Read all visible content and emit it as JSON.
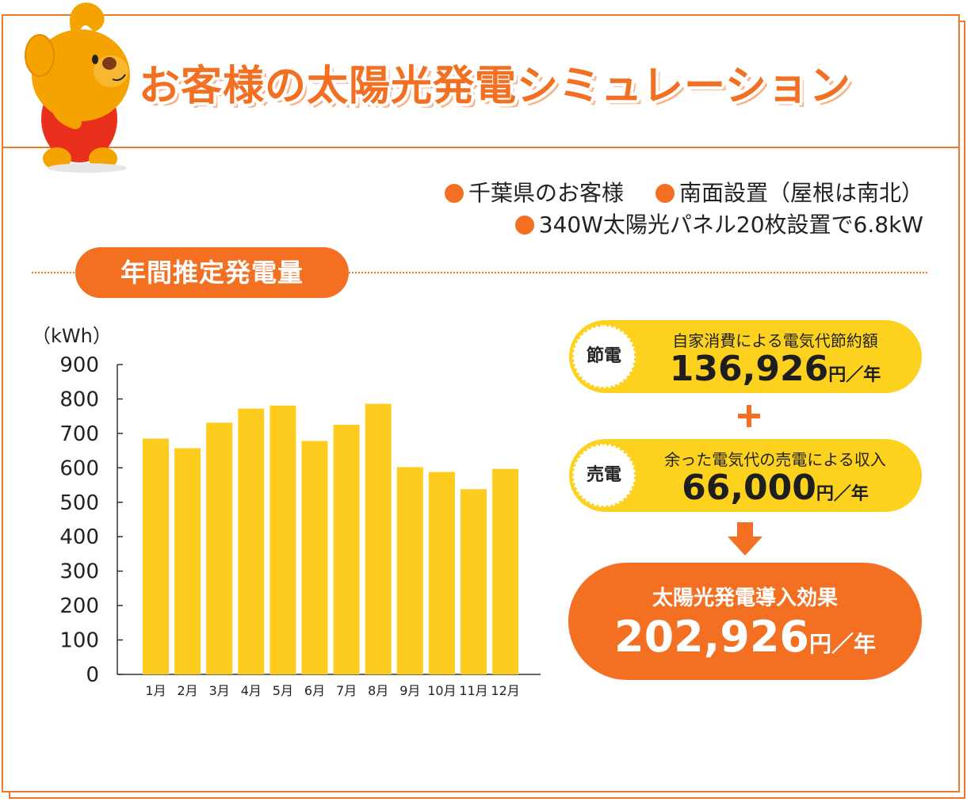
{
  "header": {
    "title": "お客様の太陽光発電シミュレーション"
  },
  "info": {
    "item1": "千葉県のお客様",
    "item2": "南面設置（屋根は南北）",
    "item3": "340W太陽光パネル20枚設置で6.8kW"
  },
  "section": {
    "title": "年間推定発電量"
  },
  "chart_data": {
    "type": "bar",
    "ylabel": "（kWh）",
    "ylim": [
      0,
      900
    ],
    "yticks": [
      "900",
      "800",
      "700",
      "600",
      "500",
      "400",
      "300",
      "200",
      "100",
      "0"
    ],
    "categories": [
      "1月",
      "2月",
      "3月",
      "4月",
      "5月",
      "6月",
      "7月",
      "8月",
      "9月",
      "10月",
      "11月",
      "12月"
    ],
    "values": [
      685,
      657,
      731,
      772,
      781,
      678,
      725,
      786,
      602,
      588,
      538,
      597
    ],
    "bar_color": "#fdcc1e",
    "grid": false
  },
  "savings": {
    "badge": "節電",
    "label": "自家消費による電気代節約額",
    "value": "136,926",
    "unit": "円／年"
  },
  "selling": {
    "badge": "売電",
    "label": "余った電気代の売電による収入",
    "value": "66,000",
    "unit": "円／年"
  },
  "result": {
    "label": "太陽光発電導入効果",
    "value": "202,926",
    "unit": "円／年"
  },
  "colors": {
    "accent": "#f36f21",
    "yellow": "#fdd21f"
  },
  "icons": {
    "mascot": "dog-mascot-icon",
    "plus": "plus-icon",
    "arrow": "arrow-down-icon"
  }
}
